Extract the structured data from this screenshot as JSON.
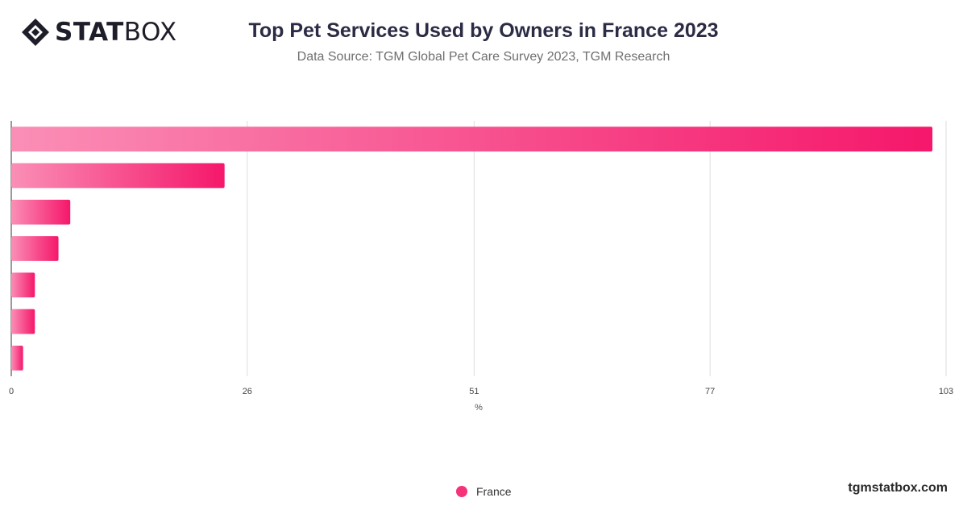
{
  "brand": {
    "logo_bold": "STAT",
    "logo_light": "BOX",
    "icon": "statbox-diamond-icon"
  },
  "chart_data": {
    "type": "bar",
    "orientation": "horizontal",
    "title": "Top Pet Services Used by Owners in France 2023",
    "subtitle": "Data Source: TGM Global Pet Care Survey 2023, TGM Research",
    "xlabel": "%",
    "ylabel": "",
    "xlim": [
      0,
      103
    ],
    "xticks": [
      0,
      26,
      51,
      77,
      103
    ],
    "categories": [
      "",
      "",
      "",
      "",
      "",
      "",
      ""
    ],
    "series": [
      {
        "name": "France",
        "values": [
          101.5,
          23.5,
          6.5,
          5.2,
          2.6,
          2.6,
          1.3
        ]
      }
    ],
    "grid": true,
    "legend": "bottom-center",
    "colors": {
      "bar_start": "#fa8fb6",
      "bar_end": "#f5176b"
    }
  },
  "footer": {
    "site": "tgmstatbox.com"
  }
}
